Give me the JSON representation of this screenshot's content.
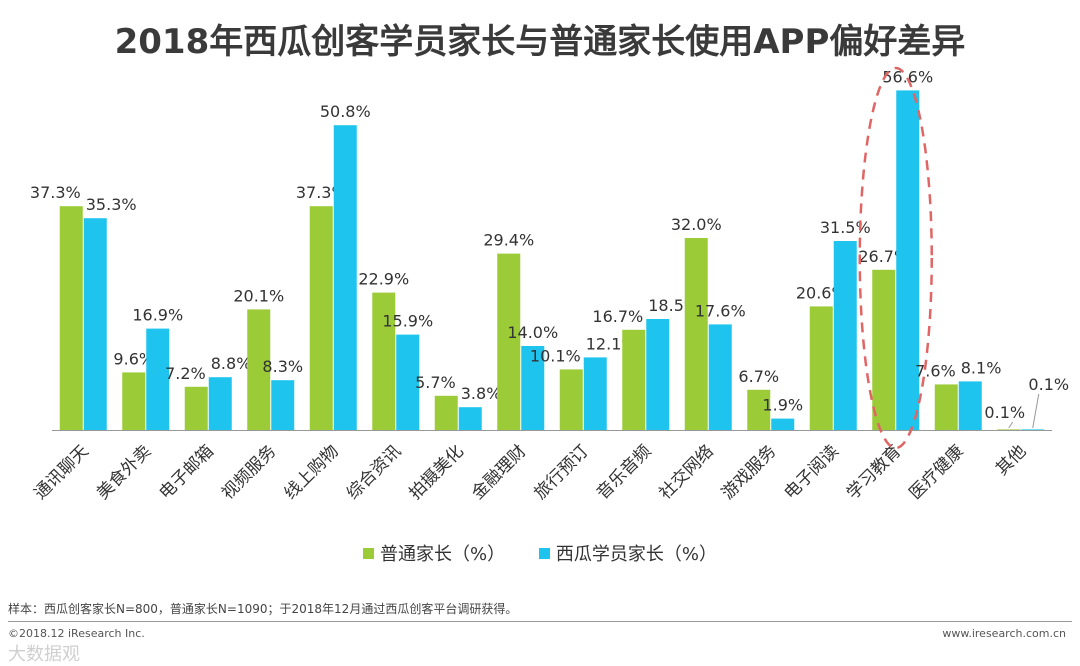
{
  "title": "2018年西瓜创客学员家长与普通家长使用APP偏好差异",
  "chart_data": {
    "type": "bar",
    "categories": [
      "通讯聊天",
      "美食外卖",
      "电子邮箱",
      "视频服务",
      "线上购物",
      "综合资讯",
      "拍摄美化",
      "金融理财",
      "旅行预订",
      "音乐音频",
      "社交网络",
      "游戏服务",
      "电子阅读",
      "学习教育",
      "医疗健康",
      "其他"
    ],
    "series": [
      {
        "name": "普通家长（%）",
        "color": "#9ccb38",
        "values": [
          37.3,
          9.6,
          7.2,
          20.1,
          37.3,
          22.9,
          5.7,
          29.4,
          10.1,
          16.7,
          32.0,
          6.7,
          20.6,
          26.7,
          7.6,
          0.1
        ]
      },
      {
        "name": "西瓜学员家长（%）",
        "color": "#1fc4ee",
        "values": [
          35.3,
          16.9,
          8.8,
          8.3,
          50.8,
          15.9,
          3.8,
          14.0,
          12.1,
          18.5,
          17.6,
          1.9,
          31.5,
          56.6,
          8.1,
          0.1
        ]
      }
    ],
    "value_suffix": "%",
    "ylim": [
      0,
      60
    ],
    "legend_position": "bottom",
    "grid": false,
    "highlight_category": "学习教育",
    "highlight_color": "#e06666"
  },
  "footer": {
    "sample": "样本：西瓜创客家长N=800，普通家长N=1090；于2018年12月通过西瓜创客平台调研获得。",
    "copyright": "©2018.12 iResearch Inc.",
    "website": "www.iresearch.com.cn",
    "watermark": "大数据观"
  }
}
